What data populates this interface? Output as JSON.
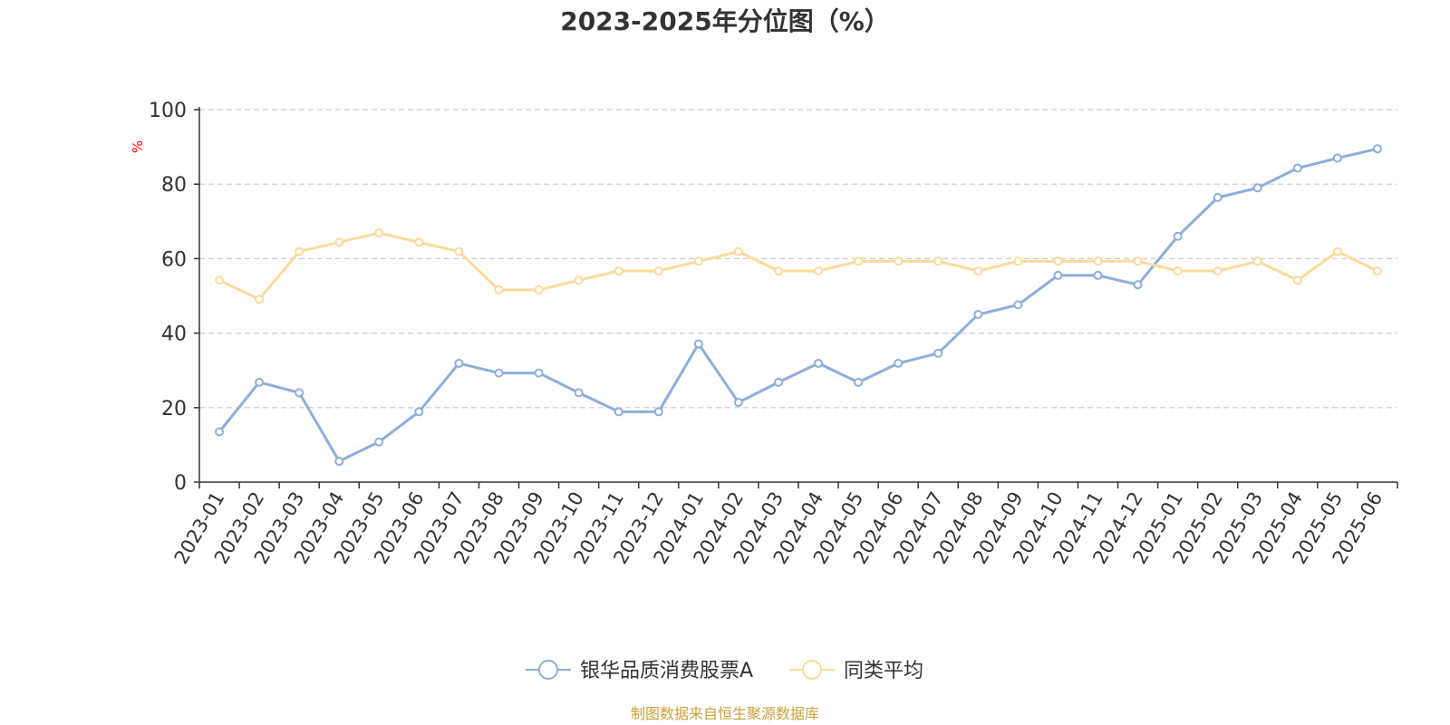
{
  "chart_data": {
    "type": "line",
    "title": "2023-2025年分位图（%）",
    "ylabel": "%",
    "xlabel": "",
    "ylim": [
      0,
      100
    ],
    "yticks": [
      0,
      20,
      40,
      60,
      80,
      100
    ],
    "grid": true,
    "legend_position": "bottom",
    "categories": [
      "2023-01",
      "2023-02",
      "2023-03",
      "2023-04",
      "2023-05",
      "2023-06",
      "2023-07",
      "2023-08",
      "2023-09",
      "2023-10",
      "2023-11",
      "2023-12",
      "2024-01",
      "2024-02",
      "2024-03",
      "2024-04",
      "2024-05",
      "2024-06",
      "2024-07",
      "2024-08",
      "2024-09",
      "2024-10",
      "2024-11",
      "2024-12",
      "2025-01",
      "2025-02",
      "2025-03",
      "2025-04",
      "2025-05",
      "2025-06"
    ],
    "series": [
      {
        "name": "银华品质消费股票A",
        "color": "#8eaedb",
        "values": [
          13.5,
          26.8,
          24.0,
          5.6,
          10.8,
          18.9,
          31.9,
          29.3,
          29.3,
          24.0,
          18.9,
          18.9,
          37.1,
          21.4,
          26.8,
          31.9,
          26.8,
          31.9,
          34.6,
          45.0,
          47.6,
          55.5,
          55.5,
          53.0,
          66.0,
          76.4,
          79.0,
          84.3,
          87.0,
          89.5
        ]
      },
      {
        "name": "同类平均",
        "color": "#fbdb9c",
        "values": [
          54.2,
          49.1,
          61.9,
          64.4,
          66.9,
          64.4,
          61.9,
          51.6,
          51.6,
          54.2,
          56.7,
          56.7,
          59.3,
          61.9,
          56.7,
          56.7,
          59.3,
          59.3,
          59.3,
          56.7,
          59.3,
          59.3,
          59.3,
          59.3,
          56.7,
          56.7,
          59.3,
          54.2,
          61.9,
          56.7
        ]
      }
    ],
    "source": "制图数据来自恒生聚源数据库",
    "colors": {
      "axis": "#333333",
      "grid": "#cccccc",
      "unit": "#ff0000",
      "source": "#c9a13b"
    }
  }
}
